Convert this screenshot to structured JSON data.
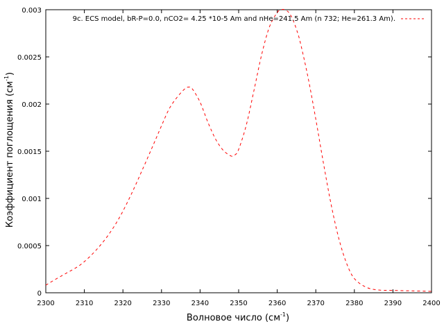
{
  "chart_data": {
    "type": "line",
    "xlabel_main": "Волновое число (см",
    "xlabel_sup": "-1",
    "xlabel_end": ")",
    "ylabel_main": "Коэффициент поглощения (см",
    "ylabel_sup": "-1",
    "ylabel_end": ")",
    "xlim": [
      2300,
      2400
    ],
    "ylim": [
      0,
      0.003
    ],
    "x_ticks": [
      "2300",
      "2310",
      "2320",
      "2330",
      "2340",
      "2350",
      "2360",
      "2370",
      "2380",
      "2390",
      "2400"
    ],
    "y_ticks": [
      "0",
      "0.0005",
      "0.001",
      "0.0015",
      "0.002",
      "0.0025",
      "0.003"
    ],
    "grid": false,
    "legend_position": "top-right",
    "series": [
      {
        "name": "9c. ECS model, bR-P=0.0, nCO2= 4.25 *10-5 Am and nHe=241.5 Am (n  732; He=261.3 Am).",
        "color": "#ff0000",
        "dash": "dashed",
        "x": [
          2300,
          2302,
          2305,
          2308,
          2310,
          2313,
          2316,
          2319,
          2322,
          2325,
          2328,
          2330,
          2332,
          2334,
          2336,
          2337,
          2338,
          2340,
          2342,
          2344,
          2346,
          2348,
          2349,
          2350,
          2352,
          2354,
          2356,
          2358,
          2360,
          2361,
          2362,
          2363,
          2364,
          2365,
          2366,
          2368,
          2370,
          2372,
          2374,
          2376,
          2378,
          2380,
          2383,
          2386,
          2390,
          2395,
          2400
        ],
        "y": [
          8e-05,
          0.00013,
          0.0002,
          0.00027,
          0.00033,
          0.00045,
          0.0006,
          0.00079,
          0.00103,
          0.0013,
          0.00158,
          0.00177,
          0.00195,
          0.00207,
          0.00216,
          0.00218,
          0.00216,
          0.00202,
          0.00181,
          0.00163,
          0.00151,
          0.00145,
          0.00146,
          0.00152,
          0.00178,
          0.00215,
          0.00253,
          0.00282,
          0.00297,
          0.003,
          0.003,
          0.00297,
          0.0029,
          0.00279,
          0.00265,
          0.00228,
          0.00184,
          0.00137,
          0.00093,
          0.00057,
          0.00031,
          0.00015,
          6e-05,
          3e-05,
          2.5e-05,
          2e-05,
          1.5e-05
        ]
      }
    ]
  }
}
